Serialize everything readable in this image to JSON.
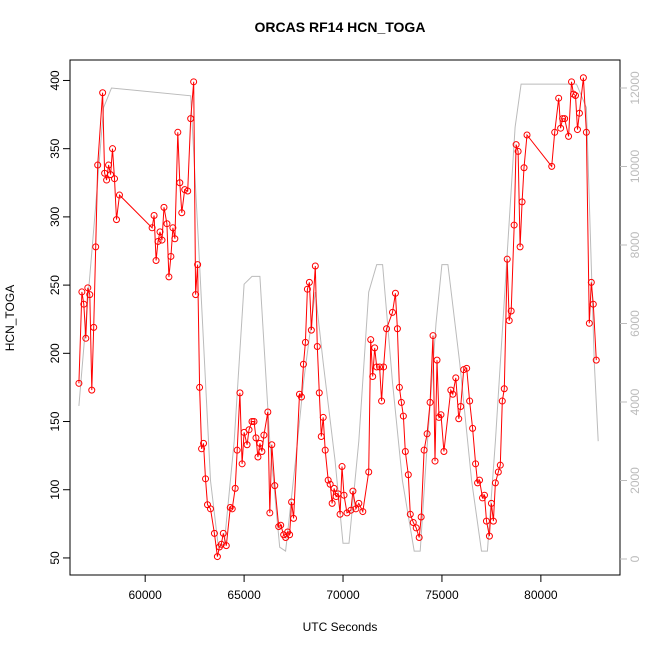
{
  "chart_data": {
    "type": "line",
    "title": "ORCAS RF14 HCN_TOGA",
    "x_label": "UTC Seconds",
    "y_label": "HCN_TOGA",
    "xlim": [
      56200,
      84000
    ],
    "xticks": [
      60000,
      65000,
      70000,
      75000,
      80000
    ],
    "ylim": [
      37.5,
      415
    ],
    "yticks": [
      50,
      100,
      150,
      200,
      250,
      300,
      350,
      400
    ],
    "y2lim": [
      -408,
      12713
    ],
    "y2ticks": [
      0,
      2000,
      4000,
      6000,
      8000,
      10000,
      12000
    ],
    "series": [
      {
        "color": "#bbbbbb",
        "axis": "y2",
        "markers": false,
        "x": [
          56650,
          57500,
          57900,
          58300,
          62300,
          62700,
          63300,
          63700,
          64000,
          64500,
          65000,
          65400,
          65800,
          66300,
          66800,
          67100,
          67600,
          68000,
          68600,
          69000,
          69600,
          70000,
          70300,
          70800,
          71300,
          71700,
          72000,
          72500,
          73000,
          73600,
          73900,
          74200,
          74700,
          75000,
          75300,
          75900,
          76500,
          77000,
          77300,
          77700,
          78200,
          78700,
          79000,
          81800,
          82300,
          82700,
          82900
        ],
        "values": [
          3900,
          9000,
          11500,
          12000,
          11800,
          8000,
          2000,
          300,
          400,
          3000,
          7000,
          7200,
          7200,
          3000,
          300,
          200,
          2500,
          4500,
          6800,
          5000,
          2500,
          400,
          400,
          3000,
          6800,
          7500,
          7500,
          4500,
          2000,
          200,
          200,
          2500,
          6000,
          7500,
          7500,
          5000,
          2000,
          200,
          200,
          3000,
          7000,
          11000,
          12100,
          12100,
          11500,
          5000,
          3000
        ]
      },
      {
        "color": "#ff0000",
        "axis": "y",
        "markers": true,
        "x": [
          56650,
          56800,
          56900,
          57000,
          57100,
          57200,
          57300,
          57400,
          57500,
          57600,
          57850,
          57950,
          58050,
          58150,
          58250,
          58350,
          58450,
          58550,
          58700,
          60350,
          60450,
          60550,
          60650,
          60750,
          60850,
          60950,
          61100,
          61200,
          61300,
          61400,
          61500,
          61650,
          61750,
          61850,
          62000,
          62150,
          62300,
          62450,
          62550,
          62650,
          62750,
          62850,
          62950,
          63050,
          63150,
          63300,
          63500,
          63650,
          63750,
          63850,
          63950,
          64100,
          64300,
          64400,
          64550,
          64650,
          64790,
          64900,
          65000,
          65150,
          65250,
          65400,
          65500,
          65600,
          65700,
          65800,
          65900,
          66000,
          66200,
          66300,
          66400,
          66550,
          66750,
          66850,
          67000,
          67100,
          67200,
          67300,
          67400,
          67500,
          67800,
          67900,
          68000,
          68100,
          68200,
          68300,
          68400,
          68600,
          68700,
          68800,
          68900,
          69000,
          69100,
          69250,
          69350,
          69450,
          69550,
          69650,
          69750,
          69850,
          69950,
          70050,
          70200,
          70400,
          70500,
          70650,
          70800,
          71000,
          71300,
          71400,
          71500,
          71600,
          71700,
          71850,
          71950,
          72050,
          72200,
          72500,
          72650,
          72750,
          72850,
          72950,
          73050,
          73150,
          73300,
          73400,
          73550,
          73700,
          73850,
          73950,
          74100,
          74250,
          74400,
          74550,
          74650,
          74750,
          74850,
          74950,
          75100,
          75450,
          75550,
          75700,
          75850,
          75950,
          76100,
          76250,
          76400,
          76550,
          76700,
          76800,
          76900,
          77050,
          77150,
          77250,
          77400,
          77500,
          77600,
          77700,
          77850,
          77950,
          78050,
          78150,
          78300,
          78400,
          78500,
          78650,
          78750,
          78850,
          78950,
          79050,
          79150,
          79300,
          80550,
          80700,
          80900,
          81000,
          81100,
          81200,
          81400,
          81550,
          81650,
          81750,
          81850,
          81950,
          82150,
          82300,
          82450,
          82550,
          82650,
          82800
        ],
        "values": [
          178,
          245,
          236,
          211,
          248,
          243,
          173,
          219,
          278,
          338,
          391,
          332,
          327,
          338,
          331,
          350,
          328,
          298,
          316,
          292,
          301,
          268,
          282,
          289,
          283,
          307,
          295,
          256,
          271,
          292,
          284,
          362,
          325,
          303,
          320,
          319,
          372,
          399,
          243,
          265,
          175,
          130,
          134,
          108,
          89,
          86,
          68,
          51,
          58,
          60,
          68,
          59,
          87,
          86,
          101,
          129,
          171,
          119,
          142,
          133,
          144,
          150,
          150,
          138,
          124,
          134,
          128,
          140,
          157,
          83,
          133,
          103,
          73,
          74,
          67,
          65,
          69,
          67,
          91,
          79,
          170,
          168,
          192,
          208,
          247,
          252,
          217,
          264,
          205,
          171,
          139,
          153,
          129,
          107,
          104,
          90,
          101,
          95,
          97,
          82,
          117,
          96,
          83,
          85,
          99,
          86,
          90,
          84,
          113,
          210,
          183,
          204,
          190,
          190,
          165,
          190,
          218,
          230,
          244,
          218,
          175,
          164,
          154,
          128,
          111,
          82,
          76,
          72,
          65,
          80,
          129,
          141,
          164,
          213,
          121,
          195,
          153,
          155,
          128,
          173,
          170,
          182,
          152,
          161,
          188,
          189,
          165,
          145,
          119,
          105,
          107,
          94,
          96,
          77,
          66,
          90,
          77,
          105,
          113,
          118,
          165,
          174,
          269,
          224,
          231,
          294,
          353,
          348,
          278,
          311,
          336,
          360,
          337,
          362,
          387,
          365,
          372,
          372,
          359,
          399,
          390,
          389,
          364,
          376,
          402,
          362,
          222,
          252,
          236,
          195
        ]
      }
    ]
  }
}
